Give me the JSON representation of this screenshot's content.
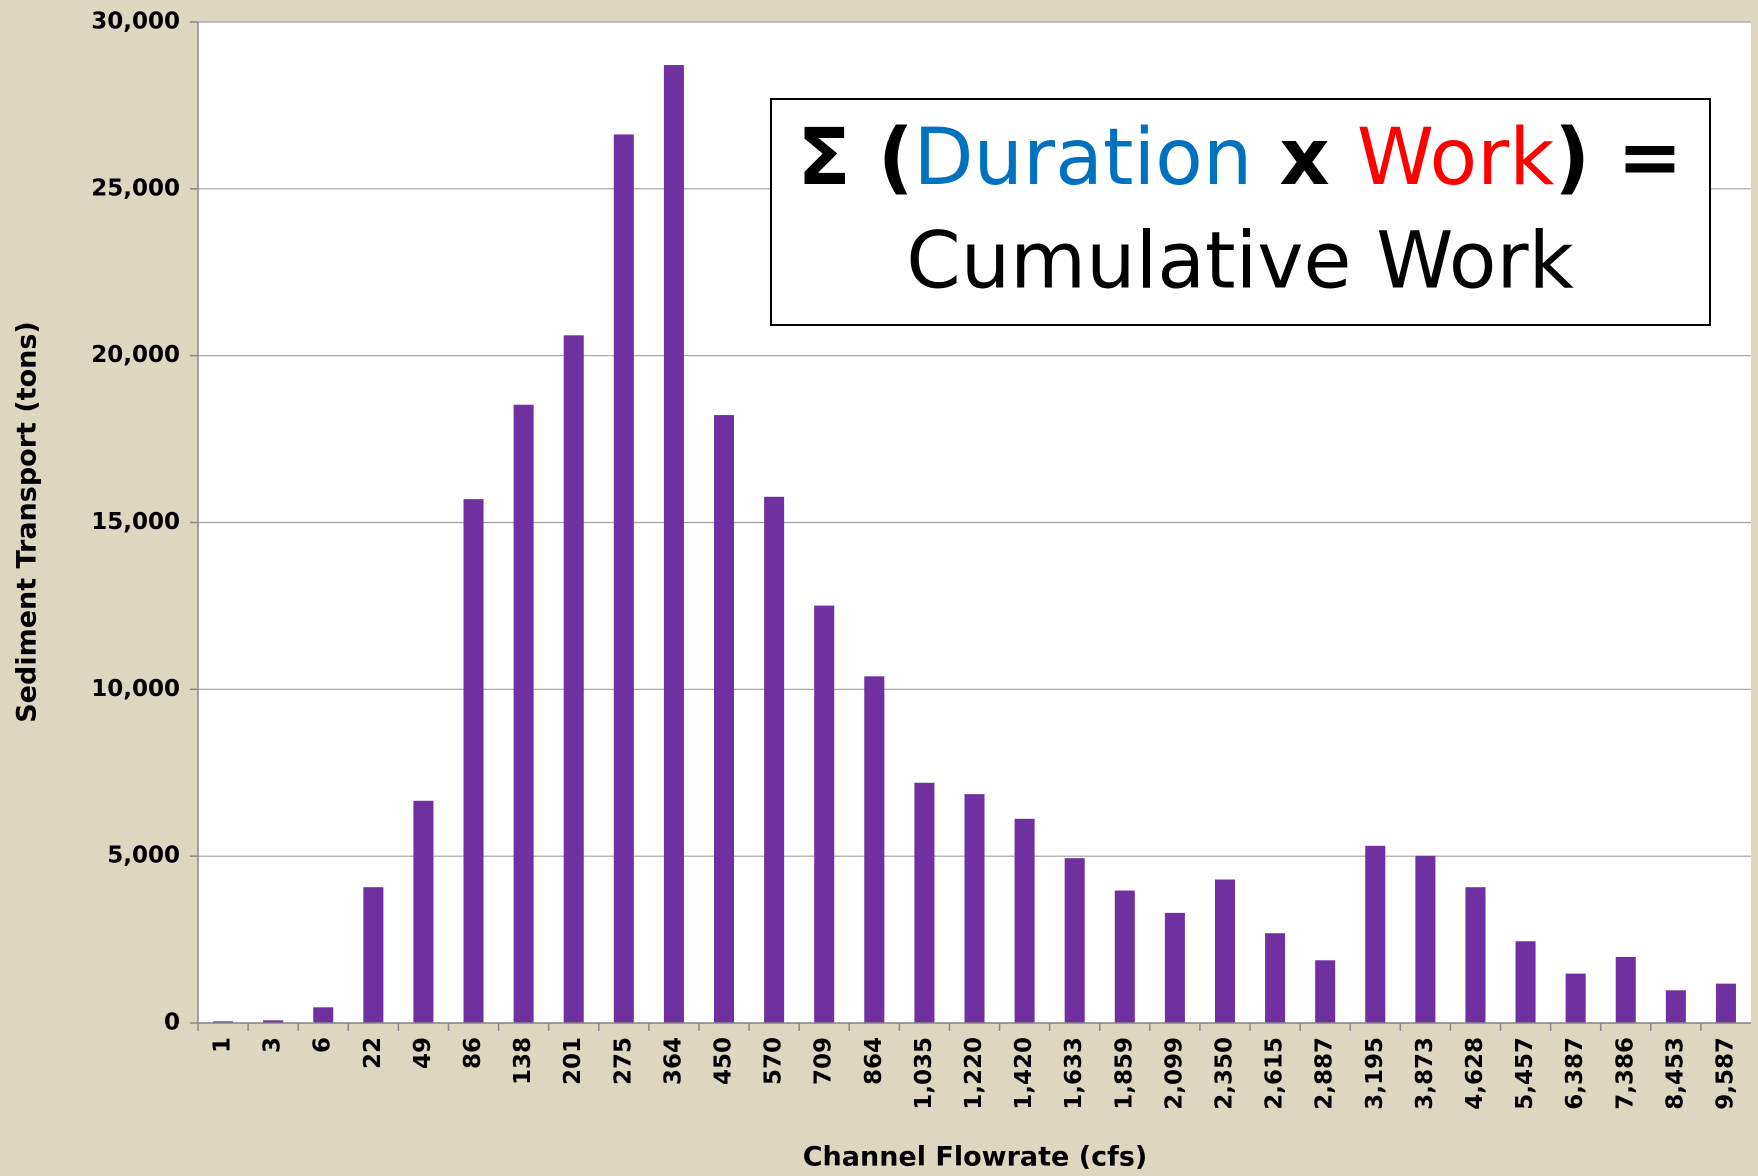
{
  "chart_data": {
    "type": "bar",
    "x_label": "Channel Flowrate (cfs)",
    "y_label": "Sediment Transport (tons)",
    "categories": [
      "1",
      "3",
      "6",
      "22",
      "49",
      "86",
      "138",
      "201",
      "275",
      "364",
      "450",
      "570",
      "709",
      "864",
      "1,035",
      "1,220",
      "1,420",
      "1,633",
      "1,859",
      "2,099",
      "2,350",
      "2,615",
      "2,887",
      "3,195",
      "3,873",
      "4,628",
      "5,457",
      "6,387",
      "7,386",
      "8,453",
      "9,587"
    ],
    "values": [
      50,
      80,
      470,
      4070,
      6660,
      15700,
      18530,
      20610,
      26630,
      28710,
      18220,
      15770,
      12510,
      10390,
      7200,
      6860,
      6120,
      4940,
      3970,
      3300,
      4300,
      2690,
      1880,
      5310,
      5010,
      4070,
      2450,
      1480,
      1980,
      980,
      1180
    ],
    "color": "#7030a0",
    "ylim": [
      0,
      30000
    ],
    "yticks": [
      0,
      {
        "value": 5000,
        "label": "5,000"
      },
      {
        "value": 10000,
        "label": "10,000"
      },
      {
        "value": 15000,
        "label": "15,000"
      },
      {
        "value": 20000,
        "label": "20,000"
      },
      {
        "value": 25000,
        "label": "25,000"
      },
      {
        "value": 30000,
        "label": "30,000"
      }
    ],
    "grid": true,
    "annotation": {
      "line1": [
        {
          "text": "Σ (",
          "color": "#000000"
        },
        {
          "text": "Duration",
          "color": "#0070c0"
        },
        {
          "text": " x ",
          "color": "#000000"
        },
        {
          "text": "Work",
          "color": "#ff0000"
        },
        {
          "text": ") =",
          "color": "#000000"
        }
      ],
      "line2": {
        "text": "Cumulative Work",
        "color": "#7030a0"
      }
    }
  }
}
